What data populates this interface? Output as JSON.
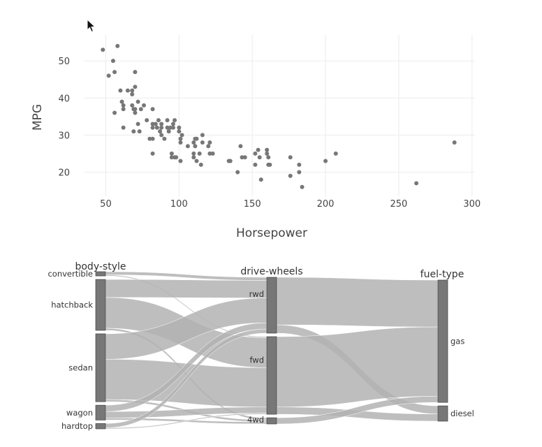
{
  "chart_data": [
    {
      "type": "scatter",
      "xlabel": "Horsepower",
      "ylabel": "MPG",
      "xlim": [
        35,
        302
      ],
      "ylim": [
        13.5,
        57
      ],
      "xticks": [
        50,
        100,
        150,
        200,
        250,
        300
      ],
      "yticks": [
        20,
        30,
        40,
        50
      ],
      "grid": true,
      "marker_color": "#777777",
      "points": [
        [
          48,
          53
        ],
        [
          52,
          46
        ],
        [
          55,
          50
        ],
        [
          56,
          47
        ],
        [
          56,
          36
        ],
        [
          58,
          54
        ],
        [
          60,
          42
        ],
        [
          61,
          39
        ],
        [
          62,
          32
        ],
        [
          62,
          38
        ],
        [
          62,
          37
        ],
        [
          65,
          42
        ],
        [
          68,
          41
        ],
        [
          68,
          38
        ],
        [
          68,
          42
        ],
        [
          69,
          31
        ],
        [
          69,
          37
        ],
        [
          70,
          47
        ],
        [
          70,
          43
        ],
        [
          70,
          36
        ],
        [
          70,
          37
        ],
        [
          72,
          39
        ],
        [
          72,
          33
        ],
        [
          73,
          31
        ],
        [
          74,
          37
        ],
        [
          76,
          38
        ],
        [
          78,
          34
        ],
        [
          80,
          29
        ],
        [
          82,
          37
        ],
        [
          82,
          33
        ],
        [
          82,
          32
        ],
        [
          82,
          29
        ],
        [
          82,
          25
        ],
        [
          84,
          33
        ],
        [
          85,
          32
        ],
        [
          86,
          34
        ],
        [
          87,
          31
        ],
        [
          88,
          32
        ],
        [
          88,
          30
        ],
        [
          88,
          33
        ],
        [
          90,
          29
        ],
        [
          92,
          34
        ],
        [
          92,
          32
        ],
        [
          93,
          31
        ],
        [
          94,
          32
        ],
        [
          95,
          25
        ],
        [
          95,
          24
        ],
        [
          96,
          32
        ],
        [
          96,
          33
        ],
        [
          97,
          34
        ],
        [
          97,
          24
        ],
        [
          98,
          24
        ],
        [
          100,
          32
        ],
        [
          100,
          31
        ],
        [
          101,
          29
        ],
        [
          101,
          28
        ],
        [
          101,
          23
        ],
        [
          102,
          30
        ],
        [
          106,
          27
        ],
        [
          110,
          28
        ],
        [
          110,
          25
        ],
        [
          110,
          24
        ],
        [
          111,
          29
        ],
        [
          111,
          27
        ],
        [
          112,
          29
        ],
        [
          112,
          23
        ],
        [
          114,
          25
        ],
        [
          115,
          22
        ],
        [
          116,
          28
        ],
        [
          116,
          30
        ],
        [
          120,
          27
        ],
        [
          121,
          28
        ],
        [
          121,
          25
        ],
        [
          123,
          25
        ],
        [
          134,
          23
        ],
        [
          135,
          23
        ],
        [
          140,
          20
        ],
        [
          142,
          27
        ],
        [
          143,
          24
        ],
        [
          145,
          24
        ],
        [
          152,
          25
        ],
        [
          152,
          22
        ],
        [
          154,
          26
        ],
        [
          155,
          24
        ],
        [
          156,
          18
        ],
        [
          160,
          26
        ],
        [
          160,
          25
        ],
        [
          161,
          24
        ],
        [
          161,
          22
        ],
        [
          162,
          22
        ],
        [
          176,
          24
        ],
        [
          176,
          19
        ],
        [
          182,
          20
        ],
        [
          182,
          22
        ],
        [
          184,
          16
        ],
        [
          200,
          23
        ],
        [
          207,
          25
        ],
        [
          262,
          17
        ],
        [
          288,
          28
        ]
      ]
    },
    {
      "type": "sankey",
      "dimensions": [
        {
          "title": "body-style",
          "categories": [
            "convertible",
            "hatchback",
            "sedan",
            "wagon",
            "hardtop"
          ],
          "counts": [
            4,
            48,
            64,
            14,
            5
          ]
        },
        {
          "title": "drive-wheels",
          "categories": [
            "rwd",
            "fwd",
            "4wd"
          ],
          "counts": [
            54,
            75,
            6
          ]
        },
        {
          "title": "fuel-type",
          "categories": [
            "gas",
            "diesel"
          ],
          "counts": [
            120,
            15
          ]
        }
      ],
      "bar_color": "#777777",
      "ribbon_color": "#b3b3b3",
      "flows_1": [
        [
          "convertible",
          "rwd",
          3
        ],
        [
          "convertible",
          "fwd",
          1
        ],
        [
          "hatchback",
          "rwd",
          17
        ],
        [
          "hatchback",
          "fwd",
          29
        ],
        [
          "hatchback",
          "4wd",
          2
        ],
        [
          "sedan",
          "rwd",
          24
        ],
        [
          "sedan",
          "fwd",
          38
        ],
        [
          "sedan",
          "4wd",
          2
        ],
        [
          "wagon",
          "rwd",
          6
        ],
        [
          "wagon",
          "fwd",
          6
        ],
        [
          "wagon",
          "4wd",
          2
        ],
        [
          "hardtop",
          "rwd",
          4
        ],
        [
          "hardtop",
          "fwd",
          1
        ]
      ],
      "flows_2": [
        [
          "rwd",
          "gas",
          46
        ],
        [
          "rwd",
          "diesel",
          8
        ],
        [
          "fwd",
          "gas",
          68
        ],
        [
          "fwd",
          "diesel",
          7
        ],
        [
          "4wd",
          "gas",
          6
        ]
      ]
    }
  ]
}
